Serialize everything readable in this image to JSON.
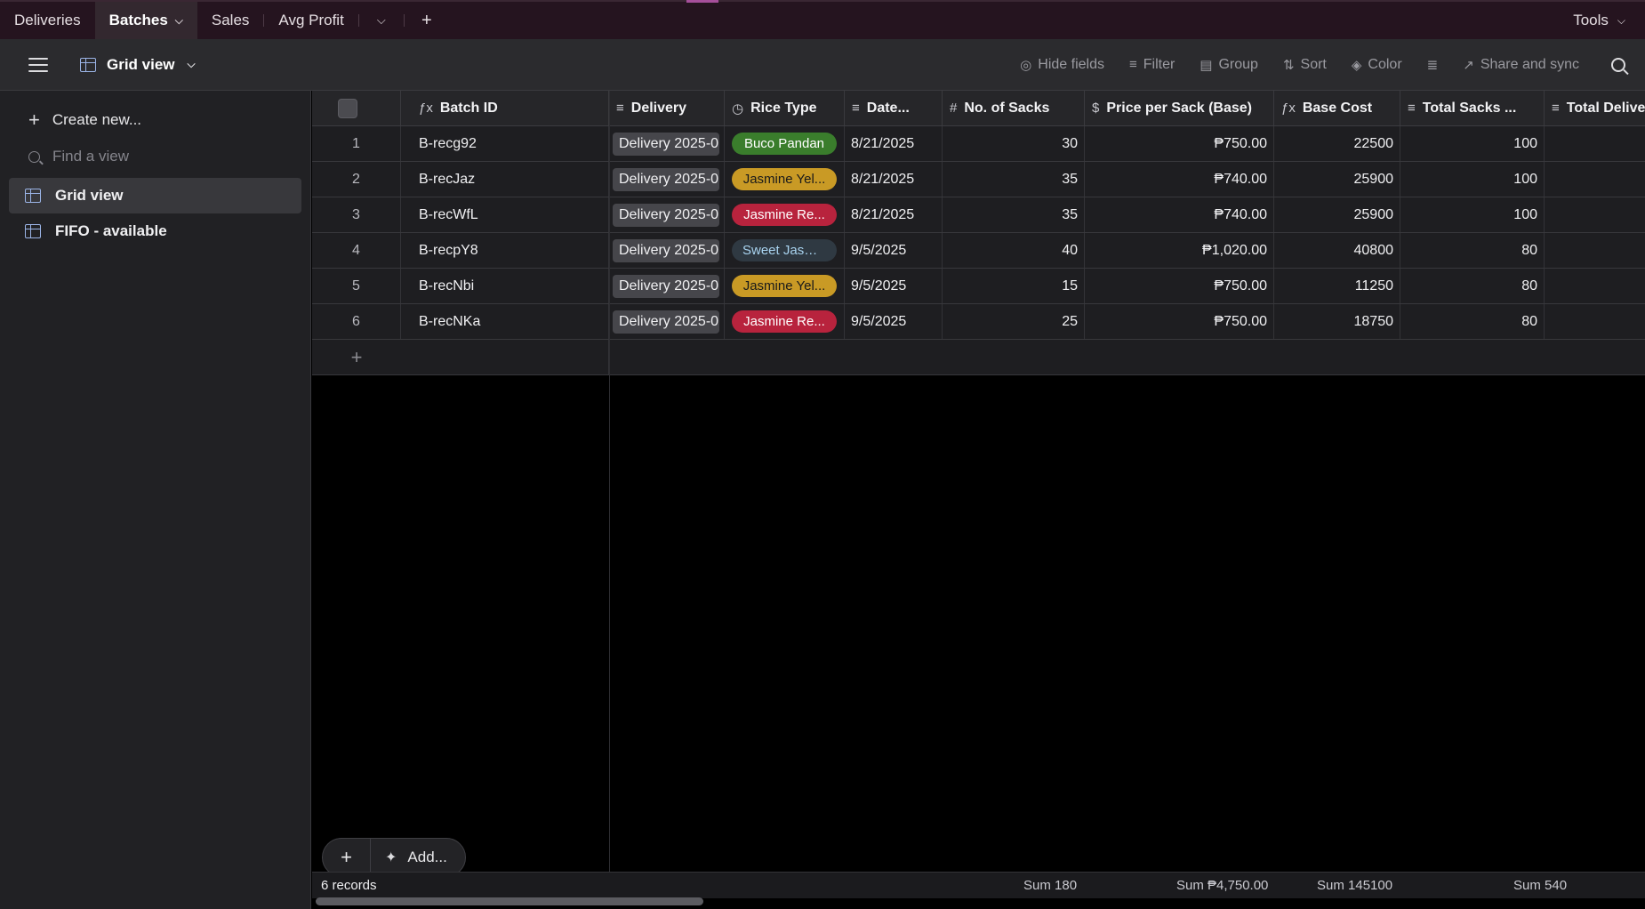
{
  "tabs": [
    {
      "label": "Deliveries",
      "active": false
    },
    {
      "label": "Batches",
      "active": true
    },
    {
      "label": "Sales",
      "active": false
    },
    {
      "label": "Avg Profit",
      "active": false
    }
  ],
  "tools_label": "Tools",
  "view": {
    "name": "Grid view"
  },
  "toolbar": {
    "hide_fields": "Hide fields",
    "filter": "Filter",
    "group": "Group",
    "sort": "Sort",
    "color": "Color",
    "share": "Share and sync"
  },
  "sidebar": {
    "create_new": "Create new...",
    "find_placeholder": "Find a view",
    "views": [
      {
        "label": "Grid view",
        "active": true
      },
      {
        "label": "FIFO - available",
        "active": false
      }
    ]
  },
  "columns": [
    {
      "label": "Batch ID",
      "icon": "formula-icon"
    },
    {
      "label": "Delivery",
      "icon": "link-icon"
    },
    {
      "label": "Rice Type",
      "icon": "select-icon"
    },
    {
      "label": "Date...",
      "icon": "lookup-icon"
    },
    {
      "label": "No. of Sacks",
      "icon": "number-icon"
    },
    {
      "label": "Price per Sack (Base)",
      "icon": "currency-icon"
    },
    {
      "label": "Base Cost",
      "icon": "formula-icon"
    },
    {
      "label": "Total Sacks ...",
      "icon": "lookup-icon"
    },
    {
      "label": "Total Delive",
      "icon": "lookup-icon"
    }
  ],
  "rows": [
    {
      "n": "1",
      "batch_id": "B-recg92",
      "delivery": "Delivery 2025-0",
      "rice": "Buco Pandan",
      "rice_color": "#3a7d2c",
      "rice_text": "#ffffff",
      "date": "8/21/2025",
      "sacks": "30",
      "price": "₱750.00",
      "base_cost": "22500",
      "total_sacks": "100"
    },
    {
      "n": "2",
      "batch_id": "B-recJaz",
      "delivery": "Delivery 2025-0",
      "rice": "Jasmine Yel...",
      "rice_color": "#c99a25",
      "rice_text": "#1a1a1a",
      "date": "8/21/2025",
      "sacks": "35",
      "price": "₱740.00",
      "base_cost": "25900",
      "total_sacks": "100"
    },
    {
      "n": "3",
      "batch_id": "B-recWfL",
      "delivery": "Delivery 2025-0",
      "rice": "Jasmine Re...",
      "rice_color": "#b8233d",
      "rice_text": "#ffffff",
      "date": "8/21/2025",
      "sacks": "35",
      "price": "₱740.00",
      "base_cost": "25900",
      "total_sacks": "100"
    },
    {
      "n": "4",
      "batch_id": "B-recpY8",
      "delivery": "Delivery 2025-0",
      "rice": "Sweet Jasm...",
      "rice_color": "#2f3942",
      "rice_text": "#a9d4f0",
      "date": "9/5/2025",
      "sacks": "40",
      "price": "₱1,020.00",
      "base_cost": "40800",
      "total_sacks": "80"
    },
    {
      "n": "5",
      "batch_id": "B-recNbi",
      "delivery": "Delivery 2025-0",
      "rice": "Jasmine Yel...",
      "rice_color": "#c99a25",
      "rice_text": "#1a1a1a",
      "date": "9/5/2025",
      "sacks": "15",
      "price": "₱750.00",
      "base_cost": "11250",
      "total_sacks": "80"
    },
    {
      "n": "6",
      "batch_id": "B-recNKa",
      "delivery": "Delivery 2025-0",
      "rice": "Jasmine Re...",
      "rice_color": "#b8233d",
      "rice_text": "#ffffff",
      "date": "9/5/2025",
      "sacks": "25",
      "price": "₱750.00",
      "base_cost": "18750",
      "total_sacks": "80"
    }
  ],
  "add_label": "Add...",
  "summary": {
    "records": "6 records",
    "sum_sacks": "Sum 180",
    "sum_price": "Sum ₱4,750.00",
    "sum_base": "Sum 145100",
    "sum_total_sacks": "Sum 540"
  }
}
